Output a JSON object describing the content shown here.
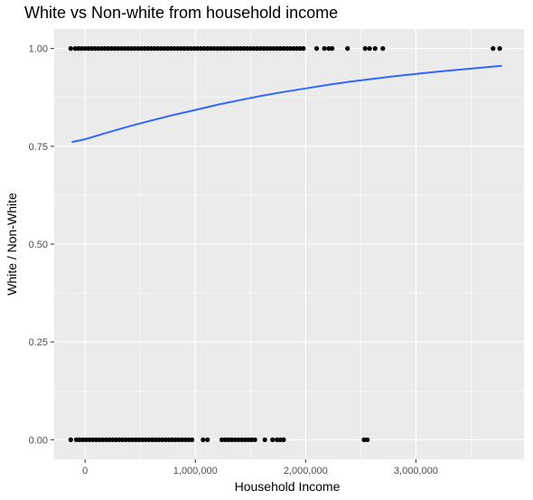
{
  "chart_data": {
    "type": "scatter",
    "title": "White vs Non-white from household income",
    "xlabel": "Household Income",
    "ylabel": "White / Non-White",
    "xlim": [
      -280000,
      3980000
    ],
    "ylim": [
      -0.05,
      1.05
    ],
    "x_ticks": [
      0,
      1000000,
      2000000,
      3000000
    ],
    "x_tick_labels": [
      "0",
      "1,000,000",
      "2,000,000",
      "3,000,000"
    ],
    "y_ticks": [
      0,
      0.25,
      0.5,
      0.75,
      1.0
    ],
    "y_tick_labels": [
      "0.00",
      "0.25",
      "0.50",
      "0.75",
      "1.00"
    ],
    "grid": true,
    "colors": {
      "panel": "#ebebeb",
      "grid": "#ffffff",
      "points": "#000000",
      "fit": "#3366ff"
    },
    "points_y1_x": [
      -130000,
      -90000,
      -60000,
      -30000,
      0,
      30000,
      60000,
      90000,
      120000,
      150000,
      180000,
      210000,
      240000,
      270000,
      300000,
      330000,
      360000,
      390000,
      420000,
      450000,
      480000,
      510000,
      540000,
      570000,
      600000,
      630000,
      660000,
      690000,
      720000,
      750000,
      780000,
      810000,
      840000,
      870000,
      900000,
      930000,
      960000,
      990000,
      1020000,
      1050000,
      1080000,
      1110000,
      1140000,
      1170000,
      1200000,
      1230000,
      1260000,
      1290000,
      1320000,
      1350000,
      1380000,
      1410000,
      1440000,
      1470000,
      1500000,
      1530000,
      1560000,
      1590000,
      1620000,
      1650000,
      1680000,
      1710000,
      1740000,
      1770000,
      1800000,
      1830000,
      1860000,
      1890000,
      1920000,
      1950000,
      1980000,
      2100000,
      2170000,
      2210000,
      2240000,
      2380000,
      2540000,
      2580000,
      2630000,
      2700000,
      3700000,
      3760000
    ],
    "points_y0_x": [
      -130000,
      -80000,
      -50000,
      -20000,
      10000,
      40000,
      70000,
      100000,
      130000,
      160000,
      190000,
      220000,
      250000,
      280000,
      310000,
      340000,
      370000,
      400000,
      430000,
      460000,
      490000,
      520000,
      550000,
      580000,
      610000,
      640000,
      670000,
      700000,
      730000,
      760000,
      790000,
      820000,
      850000,
      880000,
      910000,
      940000,
      970000,
      1070000,
      1110000,
      1240000,
      1270000,
      1300000,
      1330000,
      1360000,
      1390000,
      1420000,
      1450000,
      1480000,
      1510000,
      1540000,
      1630000,
      1700000,
      1740000,
      1770000,
      1800000,
      2530000,
      2560000
    ],
    "fit_line": {
      "x": [
        -120000,
        0,
        200000,
        400000,
        600000,
        800000,
        1000000,
        1200000,
        1400000,
        1600000,
        1800000,
        2000000,
        2200000,
        2400000,
        2600000,
        2800000,
        3000000,
        3200000,
        3400000,
        3600000,
        3780000
      ],
      "y": [
        0.761,
        0.768,
        0.785,
        0.801,
        0.816,
        0.83,
        0.843,
        0.856,
        0.868,
        0.879,
        0.889,
        0.898,
        0.907,
        0.915,
        0.922,
        0.929,
        0.935,
        0.941,
        0.946,
        0.951,
        0.956
      ]
    }
  }
}
